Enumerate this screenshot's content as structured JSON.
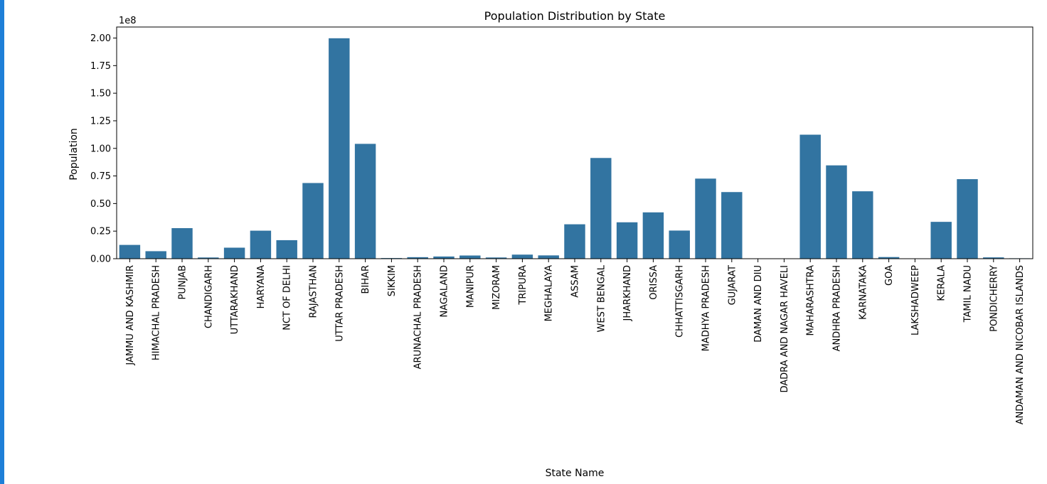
{
  "chart_data": {
    "type": "bar",
    "title": "Population Distribution by State",
    "xlabel": "State Name",
    "ylabel": "Population",
    "offset_text": "1e8",
    "ylim": [
      0,
      2.1
    ],
    "yticks": [
      "0.00",
      "0.25",
      "0.50",
      "0.75",
      "1.00",
      "1.25",
      "1.50",
      "1.75",
      "2.00"
    ],
    "grid": false,
    "legend": "none",
    "bar_color": "#3274a1",
    "categories": [
      "JAMMU AND KASHMIR",
      "HIMACHAL PRADESH",
      "PUNJAB",
      "CHANDIGARH",
      "UTTARAKHAND",
      "HARYANA",
      "NCT OF DELHI",
      "RAJASTHAN",
      "UTTAR PRADESH",
      "BIHAR",
      "SIKKIM",
      "ARUNACHAL PRADESH",
      "NAGALAND",
      "MANIPUR",
      "MIZORAM",
      "TRIPURA",
      "MEGHALAYA",
      "ASSAM",
      "WEST BENGAL",
      "JHARKHAND",
      "ORISSA",
      "CHHATTISGARH",
      "MADHYA PRADESH",
      "GUJARAT",
      "DAMAN AND DIU",
      "DADRA AND NAGAR HAVELI",
      "MAHARASHTRA",
      "ANDHRA PRADESH",
      "KARNATAKA",
      "GOA",
      "LAKSHADWEEP",
      "KERALA",
      "TAMIL NADU",
      "PONDICHERRY",
      "ANDAMAN AND NICOBAR ISLANDS"
    ],
    "values": [
      0.125,
      0.068,
      0.277,
      0.011,
      0.1,
      0.254,
      0.168,
      0.686,
      1.998,
      1.041,
      0.006,
      0.014,
      0.02,
      0.029,
      0.011,
      0.037,
      0.03,
      0.312,
      0.913,
      0.33,
      0.42,
      0.255,
      0.726,
      0.604,
      0.002,
      0.003,
      1.124,
      0.846,
      0.611,
      0.015,
      0.0006,
      0.334,
      0.721,
      0.012,
      0.004
    ]
  }
}
